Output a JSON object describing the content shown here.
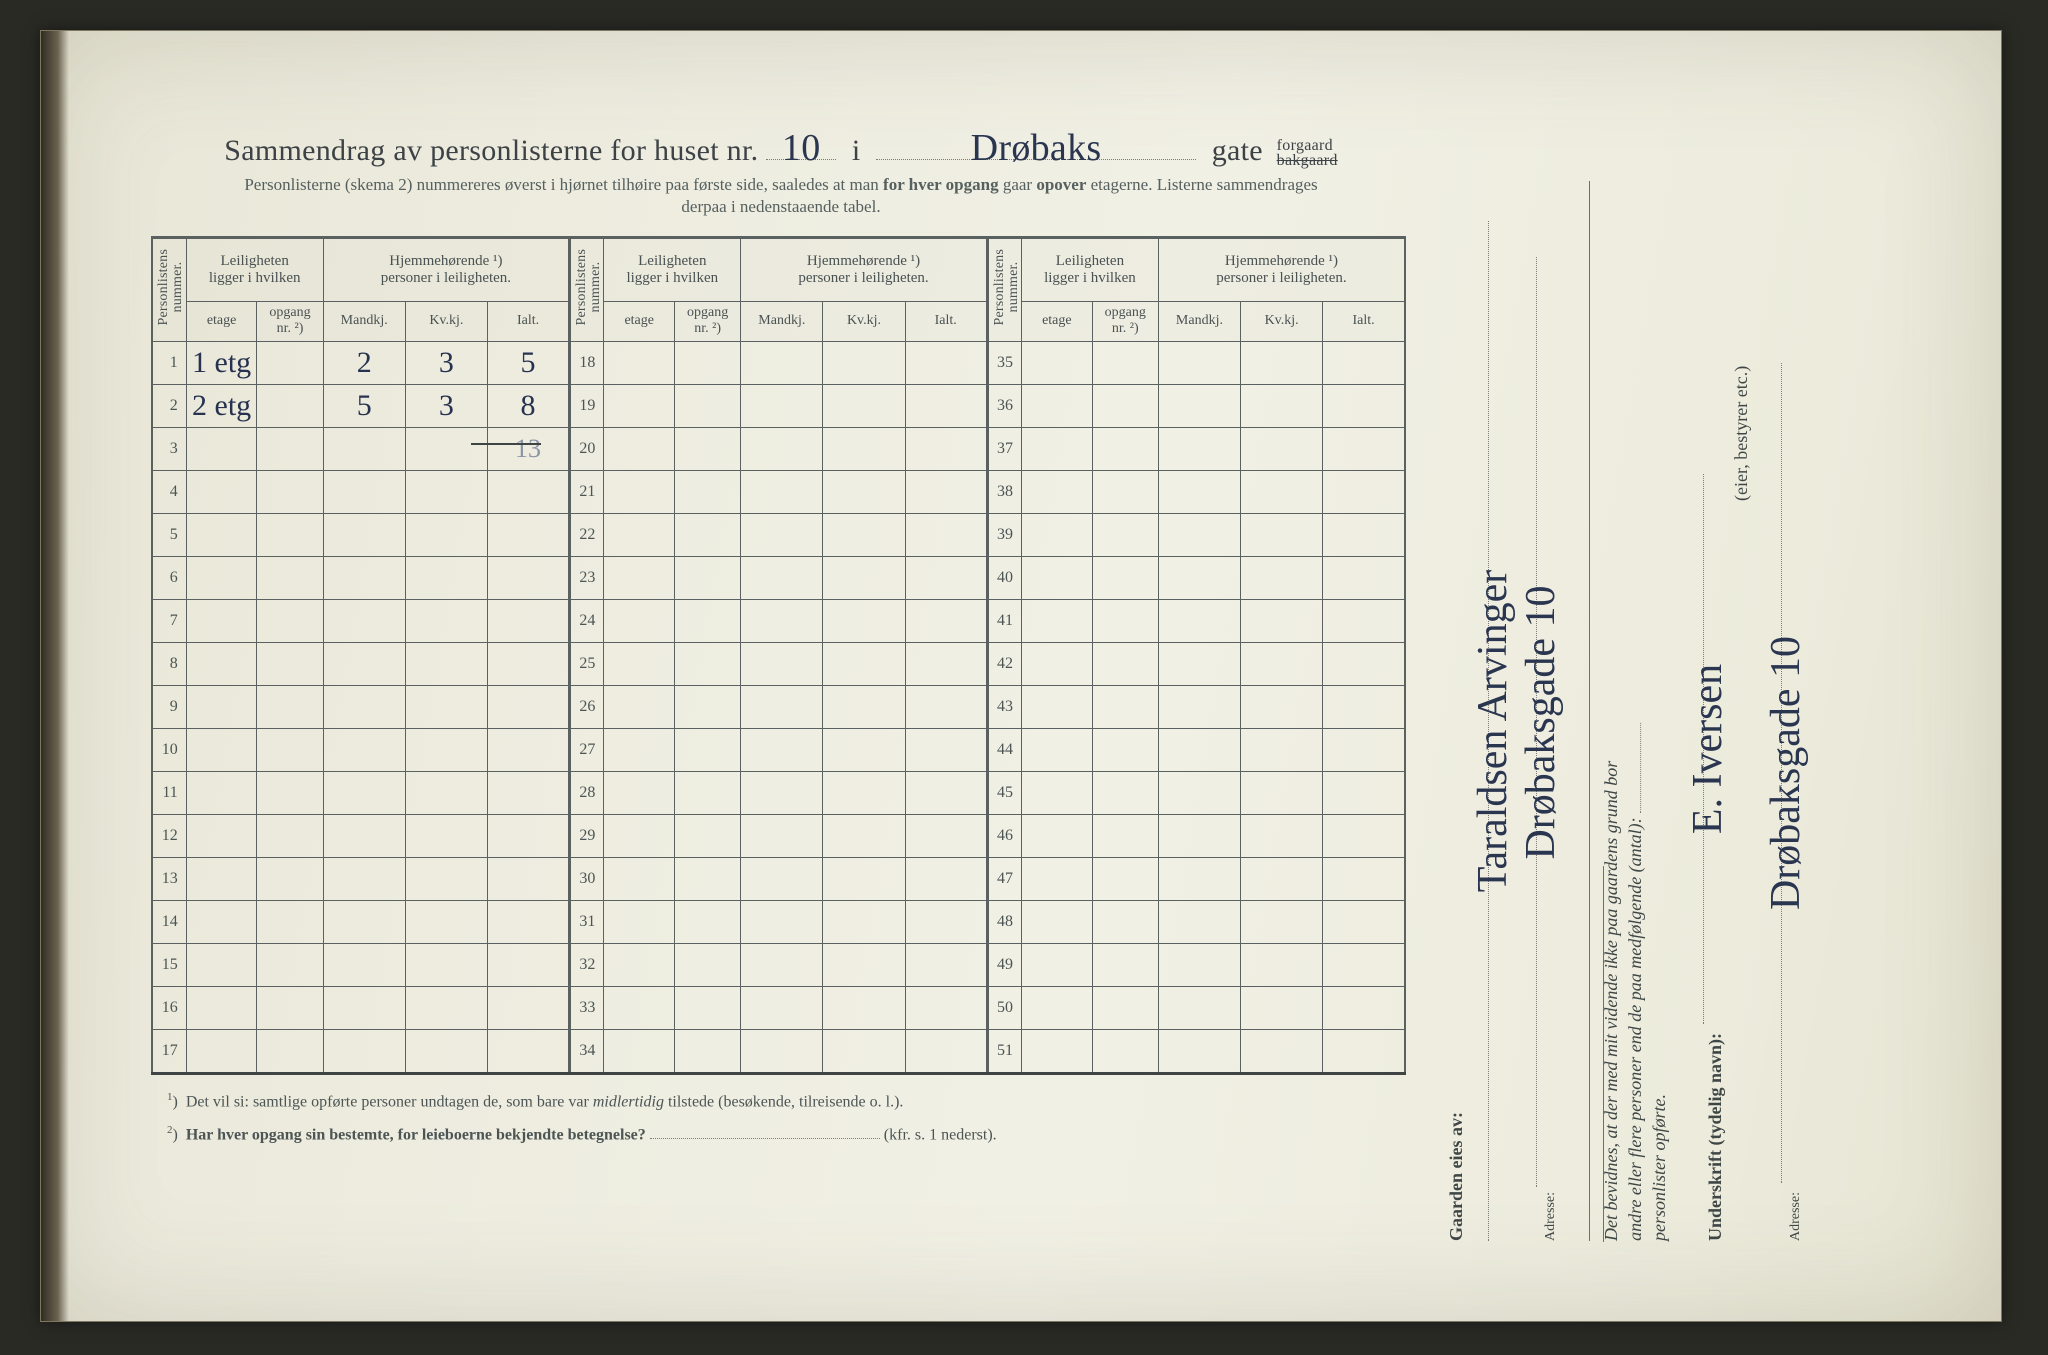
{
  "meta": {
    "paper_bg": "#edecdf",
    "ink_color": "#2a3550",
    "print_color": "#4a5252",
    "border_color": "#5b6160"
  },
  "title": {
    "prefix": "Sammendrag av personlisterne for huset nr.",
    "house_nr": "10",
    "mid": "i",
    "street": "Drøbaks",
    "suffix": "gate",
    "gate_opt_top": "forgaard",
    "gate_opt_bottom": "bakgaard"
  },
  "subtitle": {
    "line1_a": "Personlisterne (skema 2) nummereres øverst i hjørnet tilhøire paa første side, saaledes at man ",
    "line1_b": "for hver opgang",
    "line1_c": " gaar ",
    "line1_d": "opover",
    "line1_e": " etagerne.  Listerne sammendrages",
    "line2": "derpaa i nedenstaaende tabel."
  },
  "headers": {
    "personlistens": "Personlistens\nnummer.",
    "leil": "Leiligheten\nligger i hvilken",
    "hjem": "Hjemmehørende ¹)\npersoner i leiligheten.",
    "etage": "etage",
    "opgang": "opgang\nnr. ²)",
    "mandkj": "Mandkj.",
    "kvkj": "Kv.kj.",
    "ialt": "Ialt."
  },
  "col_widths": {
    "vert": 30,
    "etage": 62,
    "opgang": 58,
    "mandkj": 72,
    "kvkj": 72,
    "ialt": 72
  },
  "rows": [
    {
      "n": 1,
      "etage": "1 etg",
      "opgang": "",
      "m": "2",
      "k": "3",
      "i": "5"
    },
    {
      "n": 2,
      "etage": "2 etg",
      "opgang": "",
      "m": "5",
      "k": "3",
      "i": "8"
    },
    {
      "n": 3,
      "etage": "",
      "opgang": "",
      "m": "",
      "k": "",
      "i": "13",
      "i_faint": true
    },
    {
      "n": 4
    },
    {
      "n": 5
    },
    {
      "n": 6
    },
    {
      "n": 7
    },
    {
      "n": 8
    },
    {
      "n": 9
    },
    {
      "n": 10
    },
    {
      "n": 11
    },
    {
      "n": 12
    },
    {
      "n": 13
    },
    {
      "n": 14
    },
    {
      "n": 15
    },
    {
      "n": 16
    },
    {
      "n": 17
    }
  ],
  "rows2_start": 18,
  "rows2_end": 34,
  "rows3_start": 35,
  "rows3_end": 51,
  "footnotes": {
    "f1": "Det vil si: samtlige opførte personer undtagen de, som bare var ",
    "f1_i": "midlertidig",
    "f1_b": " tilstede (besøkende, tilreisende o. l.).",
    "f2": "Har hver opgang sin bestemte, for leieboerne bekjendte betegnelse?",
    "f2_tail": "(kfr. s. 1 nederst)."
  },
  "side_left": {
    "label": "Gaarden eies av:",
    "owner": "Taraldsen Arvinger",
    "addr_label": "Adresse:",
    "addr": "Drøbaksgade 10"
  },
  "side_right": {
    "line1": "Det bevidnes, at der med mit vidende ikke paa gaardens grund bor",
    "line2a": "andre eller flere personer end de paa medfølgende (antal):",
    "line2b": "",
    "line3": "personlister opførte.",
    "sign_label": "Underskrift (tydelig navn):",
    "sign": "E. Iversen",
    "role": "(eier, bestyrer etc.)",
    "addr_label": "Adresse:",
    "addr": "Drøbaksgade 10"
  }
}
